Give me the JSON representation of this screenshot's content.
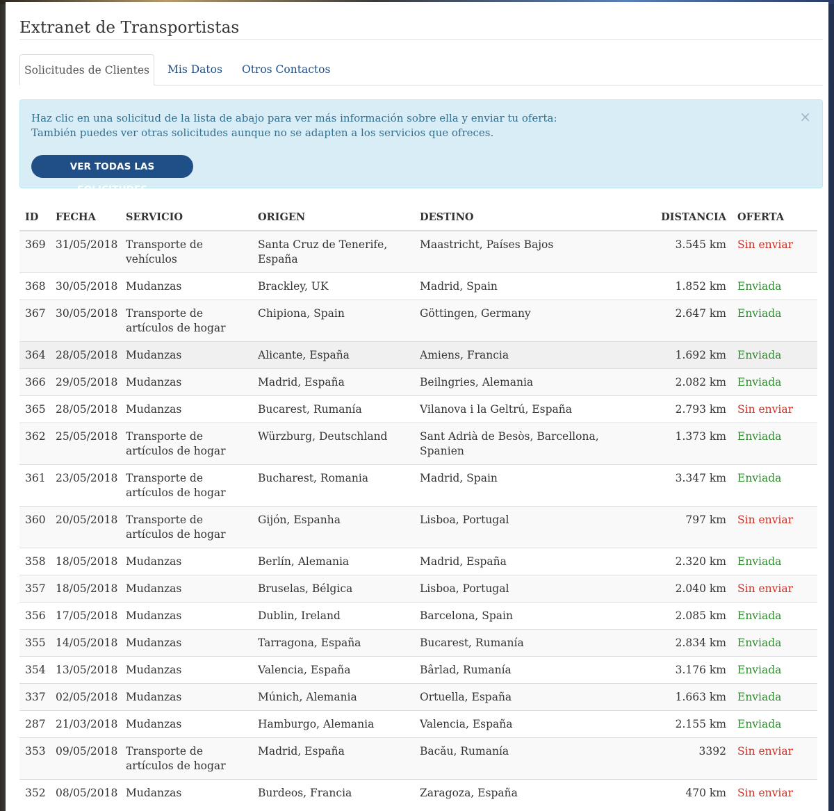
{
  "page": {
    "title": "Extranet de Transportistas"
  },
  "tabs": [
    {
      "label": "Solicitudes de Clientes"
    },
    {
      "label": "Mis Datos"
    },
    {
      "label": "Otros Contactos"
    }
  ],
  "alert": {
    "line1": "Haz clic en una solicitud de la lista de abajo para ver más información sobre ella y enviar tu oferta:",
    "line2": "También puedes ver otras solicitudes aunque no se adapten a los servicios que ofreces.",
    "close": "×",
    "button": "VER TODAS LAS SOLICITUDES"
  },
  "table": {
    "headers": [
      "ID",
      "FECHA",
      "SERVICIO",
      "ORIGEN",
      "DESTINO",
      "DISTANCIA",
      "OFERTA"
    ],
    "rows": [
      {
        "id": "369",
        "date": "31/05/2018",
        "service": "Transporte de vehículos",
        "origin": "Santa Cruz de Tenerife, España",
        "dest": "Maastricht, Países Bajos",
        "dist": "3.545 km",
        "offer": "Sin enviar"
      },
      {
        "id": "368",
        "date": "30/05/2018",
        "service": "Mudanzas",
        "origin": "Brackley, UK",
        "dest": "Madrid, Spain",
        "dist": "1.852 km",
        "offer": "Enviada"
      },
      {
        "id": "367",
        "date": "30/05/2018",
        "service": "Transporte de artículos de hogar",
        "origin": "Chipiona, Spain",
        "dest": "Göttingen, Germany",
        "dist": "2.647 km",
        "offer": "Enviada"
      },
      {
        "id": "364",
        "date": "28/05/2018",
        "service": "Mudanzas",
        "origin": "Alicante, España",
        "dest": "Amiens, Francia",
        "dist": "1.692 km",
        "offer": "Enviada"
      },
      {
        "id": "366",
        "date": "29/05/2018",
        "service": "Mudanzas",
        "origin": "Madrid, España",
        "dest": "Beilngries, Alemania",
        "dist": "2.082 km",
        "offer": "Enviada"
      },
      {
        "id": "365",
        "date": "28/05/2018",
        "service": "Mudanzas",
        "origin": "Bucarest, Rumanía",
        "dest": "Vilanova i la Geltrú, España",
        "dist": "2.793 km",
        "offer": "Sin enviar"
      },
      {
        "id": "362",
        "date": "25/05/2018",
        "service": "Transporte de artículos de hogar",
        "origin": "Würzburg, Deutschland",
        "dest": "Sant Adrià de Besòs, Barcellona, Spanien",
        "dist": "1.373 km",
        "offer": "Enviada"
      },
      {
        "id": "361",
        "date": "23/05/2018",
        "service": "Transporte de artículos de hogar",
        "origin": "Bucharest, Romania",
        "dest": "Madrid, Spain",
        "dist": "3.347 km",
        "offer": "Enviada"
      },
      {
        "id": "360",
        "date": "20/05/2018",
        "service": "Transporte de artículos de hogar",
        "origin": "Gijón, Espanha",
        "dest": "Lisboa, Portugal",
        "dist": "797 km",
        "offer": "Sin enviar"
      },
      {
        "id": "358",
        "date": "18/05/2018",
        "service": "Mudanzas",
        "origin": "Berlín, Alemania",
        "dest": "Madrid, España",
        "dist": "2.320 km",
        "offer": "Enviada"
      },
      {
        "id": "357",
        "date": "18/05/2018",
        "service": "Mudanzas",
        "origin": "Bruselas, Bélgica",
        "dest": "Lisboa, Portugal",
        "dist": "2.040 km",
        "offer": "Sin enviar"
      },
      {
        "id": "356",
        "date": "17/05/2018",
        "service": "Mudanzas",
        "origin": "Dublin, Ireland",
        "dest": "Barcelona, Spain",
        "dist": "2.085 km",
        "offer": "Enviada"
      },
      {
        "id": "355",
        "date": "14/05/2018",
        "service": "Mudanzas",
        "origin": "Tarragona, España",
        "dest": "Bucarest, Rumanía",
        "dist": "2.834 km",
        "offer": "Enviada"
      },
      {
        "id": "354",
        "date": "13/05/2018",
        "service": "Mudanzas",
        "origin": "Valencia, España",
        "dest": "Bârlad, Rumanía",
        "dist": "3.176 km",
        "offer": "Enviada"
      },
      {
        "id": "337",
        "date": "02/05/2018",
        "service": "Mudanzas",
        "origin": "Múnich, Alemania",
        "dest": "Ortuella, España",
        "dist": "1.663 km",
        "offer": "Enviada"
      },
      {
        "id": "287",
        "date": "21/03/2018",
        "service": "Mudanzas",
        "origin": "Hamburgo, Alemania",
        "dest": "Valencia, España",
        "dist": "2.155 km",
        "offer": "Enviada"
      },
      {
        "id": "353",
        "date": "09/05/2018",
        "service": "Transporte de artículos de hogar",
        "origin": "Madrid, España",
        "dest": "Bacău, Rumanía",
        "dist": "3392",
        "offer": "Sin enviar"
      },
      {
        "id": "352",
        "date": "08/05/2018",
        "service": "Mudanzas",
        "origin": "Burdeos, Francia",
        "dest": "Zaragoza, España",
        "dist": "470 km",
        "offer": "Sin enviar"
      }
    ]
  },
  "colors": {
    "link": "#1f4f86",
    "alert_bg": "#d9edf7",
    "alert_text": "#31708f",
    "status_pending": "#d62b1f",
    "status_sent": "#2e8b2e"
  }
}
